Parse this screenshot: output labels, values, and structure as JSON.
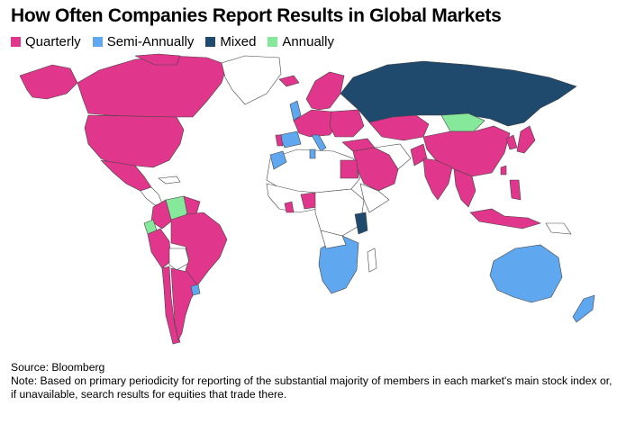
{
  "title": "How Often Companies Report Results in Global Markets",
  "legend": [
    {
      "label": "Quarterly",
      "color": "#e0368c"
    },
    {
      "label": "Semi-Annually",
      "color": "#5fa8f0"
    },
    {
      "label": "Mixed",
      "color": "#1f4a6e"
    },
    {
      "label": "Annually",
      "color": "#86e89a"
    }
  ],
  "colors": {
    "no_data": "#ffffff",
    "border": "#444444"
  },
  "source": "Source: Bloomberg",
  "note": "Note: Based on primary periodicity for reporting of the substantial majority of members in each market's main stock index or, if unavailable, search results for equities that trade there."
}
